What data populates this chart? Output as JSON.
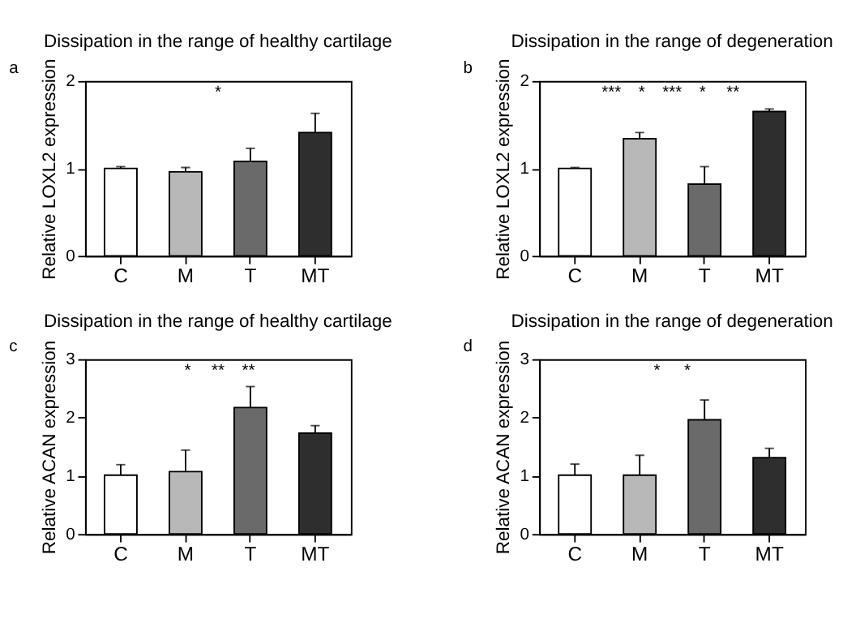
{
  "chart_data": [
    {
      "type": "bar",
      "title": "Dissipation in the range of healthy cartilage",
      "ylabel": "Relative LOXL2 expression",
      "categories": [
        "C",
        "M",
        "T",
        "MT"
      ],
      "values": [
        1.0,
        0.96,
        1.08,
        1.41
      ],
      "colors": [
        "#ffffff",
        "#b8b8b8",
        "#6a6a6a",
        "#2e2e2e"
      ],
      "errors": [
        [
          1.0,
          1.02
        ],
        [
          0.96,
          1.01
        ],
        [
          1.08,
          1.23
        ],
        [
          1.41,
          1.63
        ]
      ],
      "ylim": [
        0,
        2
      ],
      "yticks": [
        0,
        1,
        2
      ],
      "grid": false,
      "annotations": [
        "a",
        "*"
      ]
    },
    {
      "type": "bar",
      "title": "Dissipation in the range of degeneration",
      "ylabel": "Relative LOXL2 expression",
      "categories": [
        "C",
        "M",
        "T",
        "MT"
      ],
      "values": [
        1.0,
        1.34,
        0.82,
        1.65
      ],
      "colors": [
        "#ffffff",
        "#b8b8b8",
        "#6a6a6a",
        "#2e2e2e"
      ],
      "errors": [
        [
          1.0,
          1.01
        ],
        [
          1.34,
          1.41
        ],
        [
          0.82,
          1.02
        ],
        [
          1.65,
          1.68
        ]
      ],
      "ylim": [
        0,
        2
      ],
      "yticks": [
        0,
        1,
        2
      ],
      "grid": false,
      "annotations": [
        "b",
        "***",
        "*",
        "***",
        "*",
        "**"
      ]
    },
    {
      "type": "bar",
      "title": "Dissipation in the range of healthy cartilage",
      "ylabel": "Relative ACAN expression",
      "categories": [
        "C",
        "M",
        "T",
        "MT"
      ],
      "values": [
        1.01,
        1.07,
        2.17,
        1.73
      ],
      "colors": [
        "#ffffff",
        "#b8b8b8",
        "#6a6a6a",
        "#2e2e2e"
      ],
      "errors": [
        [
          1.01,
          1.19
        ],
        [
          1.07,
          1.44
        ],
        [
          2.17,
          2.53
        ],
        [
          1.73,
          1.86
        ]
      ],
      "ylim": [
        0,
        3
      ],
      "yticks": [
        0,
        1,
        2,
        3
      ],
      "grid": false,
      "annotations": [
        "c",
        "*",
        "**",
        "**"
      ]
    },
    {
      "type": "bar",
      "title": "Dissipation in the range of degeneration",
      "ylabel": "Relative ACAN expression",
      "categories": [
        "C",
        "M",
        "T",
        "MT"
      ],
      "values": [
        1.01,
        1.01,
        1.96,
        1.31
      ],
      "colors": [
        "#ffffff",
        "#b8b8b8",
        "#6a6a6a",
        "#2e2e2e"
      ],
      "errors": [
        [
          1.01,
          1.2
        ],
        [
          1.01,
          1.35
        ],
        [
          1.96,
          2.3
        ],
        [
          1.31,
          1.47
        ]
      ],
      "ylim": [
        0,
        3
      ],
      "yticks": [
        0,
        1,
        2,
        3
      ],
      "grid": false,
      "annotations": [
        "d",
        "*",
        "*"
      ]
    }
  ]
}
